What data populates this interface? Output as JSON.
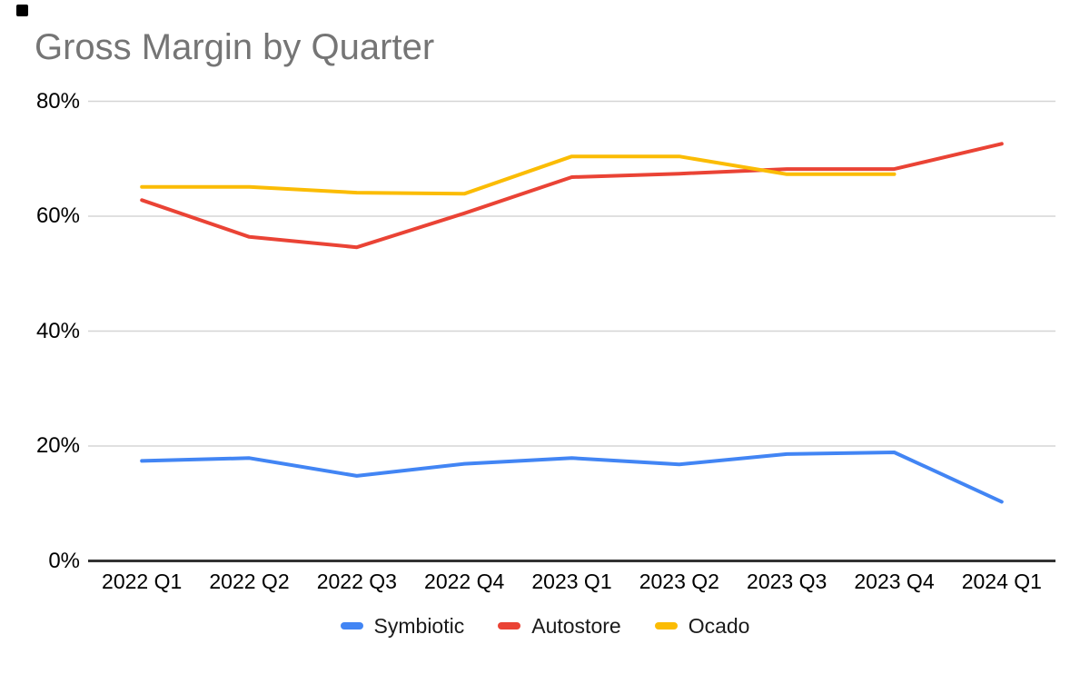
{
  "chart_data": {
    "type": "line",
    "title": "Gross Margin by Quarter",
    "categories": [
      "2022 Q1",
      "2022 Q2",
      "2022 Q3",
      "2022 Q4",
      "2023 Q1",
      "2023 Q2",
      "2023 Q3",
      "2023 Q4",
      "2024 Q1"
    ],
    "series": [
      {
        "name": "Symbiotic",
        "color": "#4285F4",
        "values": [
          17.4,
          17.9,
          14.8,
          16.9,
          17.9,
          16.8,
          18.6,
          18.9,
          10.3
        ]
      },
      {
        "name": "Autostore",
        "color": "#EA4335",
        "values": [
          62.8,
          56.4,
          54.6,
          60.5,
          66.8,
          67.4,
          68.2,
          68.2,
          72.6
        ]
      },
      {
        "name": "Ocado",
        "color": "#FBBC04",
        "values": [
          65.1,
          65.1,
          64.1,
          63.9,
          70.4,
          70.4,
          67.3,
          67.3,
          null
        ]
      }
    ],
    "xlabel": "",
    "ylabel": "",
    "ylim": [
      0,
      80
    ],
    "yticks": [
      {
        "value": 80,
        "label": "80%"
      },
      {
        "value": 60,
        "label": "60%"
      },
      {
        "value": 40,
        "label": "40%"
      },
      {
        "value": 20,
        "label": "20%"
      },
      {
        "value": 0,
        "label": "0%"
      }
    ],
    "grid": "horizontal",
    "legend_position": "bottom"
  },
  "colors": {
    "title_text": "#757575",
    "axis_text": "#000000",
    "legend_text": "#1a1a1a",
    "gridline": "#d5d5d5",
    "baseline": "#333333",
    "background": "#ffffff",
    "corner_mark": "#000000"
  }
}
